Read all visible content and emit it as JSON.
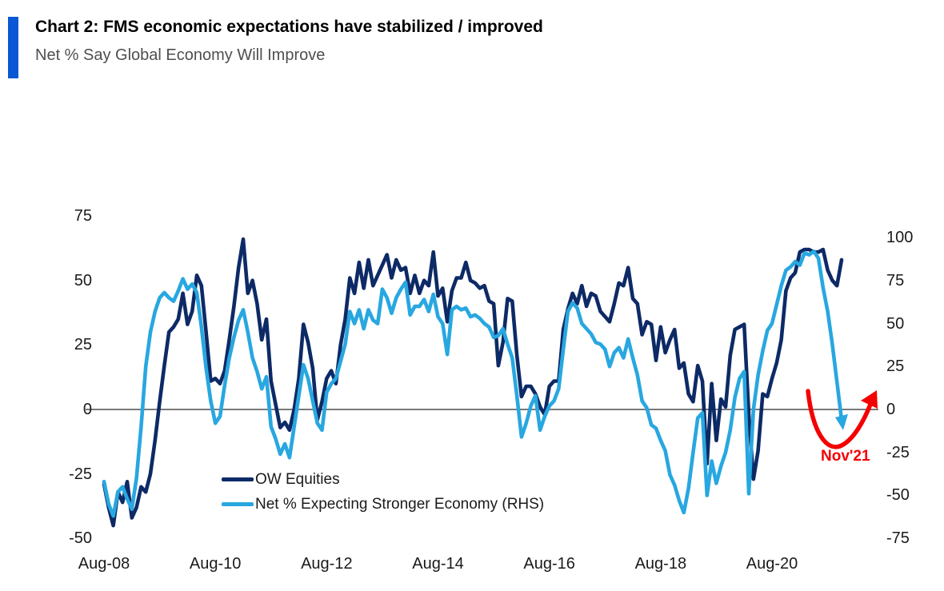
{
  "header": {
    "title": "Chart 2: FMS economic expectations have stabilized / improved",
    "subtitle": "Net % Say Global Economy Will Improve",
    "accent_color": "#0b58d6"
  },
  "chart_data": {
    "type": "line",
    "title": "Net % Say Global Economy Will Improve",
    "x_months": {
      "start": "Aug-08",
      "end": "Nov-21",
      "step": "1 month",
      "count": 160
    },
    "x_ticks": {
      "labels": [
        "Aug-08",
        "Aug-10",
        "Aug-12",
        "Aug-14",
        "Aug-16",
        "Aug-18",
        "Aug-20"
      ],
      "month_indices": [
        0,
        24,
        48,
        72,
        96,
        120,
        144
      ]
    },
    "left_axis": {
      "ticks": [
        75,
        50,
        25,
        0,
        -25,
        -50
      ],
      "min": -50,
      "max": 75
    },
    "right_axis": {
      "ticks": [
        100,
        75,
        50,
        25,
        0,
        -25,
        -50,
        -75
      ],
      "min": -75,
      "max": 100
    },
    "zero_line": true,
    "grid": false,
    "legend_position": "inside-lower-left",
    "series": [
      {
        "name": "OW Equities",
        "axis": "left",
        "color": "#0d2a66",
        "values": [
          -29,
          -38,
          -45,
          -32,
          -36,
          -28,
          -42,
          -38,
          -30,
          -32,
          -25,
          -12,
          3,
          17,
          30,
          32,
          35,
          45,
          33,
          38,
          52,
          48,
          30,
          11,
          12,
          10,
          15,
          27,
          40,
          55,
          66,
          45,
          50,
          41,
          27,
          35,
          11,
          2,
          -7,
          -5,
          -8,
          0,
          12,
          33,
          26,
          16,
          -4,
          3,
          12,
          15,
          10,
          25,
          35,
          51,
          45,
          57,
          47,
          58,
          48,
          52,
          56,
          60,
          51,
          58,
          54,
          55,
          45,
          52,
          45,
          50,
          48,
          61,
          44,
          47,
          34,
          46,
          51,
          51,
          57,
          50,
          49,
          47,
          48,
          42,
          41,
          17,
          26,
          43,
          42,
          21,
          5,
          9,
          9,
          6,
          1,
          -2,
          9,
          11,
          11,
          31,
          39,
          45,
          41,
          48,
          40,
          45,
          44,
          38,
          36,
          34,
          41,
          49,
          48,
          55,
          43,
          41,
          29,
          34,
          33,
          19,
          32,
          22,
          27,
          31,
          16,
          18,
          6,
          3,
          17,
          11,
          -21,
          10,
          -12,
          4,
          1,
          21,
          31,
          32,
          33,
          -2,
          -27,
          -16,
          6,
          5,
          12,
          18,
          27,
          46,
          51,
          53,
          61,
          62,
          62,
          61,
          61,
          62,
          54,
          50,
          48,
          58
        ]
      },
      {
        "name": "Net % Expecting Stronger Economy (RHS)",
        "axis": "right",
        "color": "#28a7e0",
        "arrow_end": true,
        "values": [
          -42,
          -55,
          -62,
          -48,
          -45,
          -52,
          -58,
          -40,
          -10,
          25,
          45,
          57,
          65,
          68,
          65,
          63,
          69,
          76,
          70,
          73,
          68,
          48,
          24,
          5,
          -8,
          -4,
          14,
          30,
          42,
          52,
          58,
          45,
          30,
          22,
          12,
          19,
          -10,
          -17,
          -26,
          -20,
          -28,
          -10,
          8,
          26,
          18,
          5,
          -8,
          -12,
          10,
          15,
          18,
          28,
          38,
          57,
          50,
          58,
          47,
          58,
          52,
          50,
          70,
          65,
          56,
          65,
          70,
          74,
          55,
          60,
          60,
          64,
          57,
          67,
          54,
          50,
          32,
          58,
          60,
          58,
          59,
          54,
          55,
          53,
          50,
          48,
          42,
          43,
          47,
          38,
          30,
          8,
          -16,
          -8,
          2,
          8,
          -12,
          -4,
          2,
          5,
          12,
          35,
          57,
          62,
          59,
          50,
          47,
          44,
          39,
          38,
          35,
          25,
          33,
          36,
          30,
          41,
          30,
          20,
          5,
          1,
          -9,
          -11,
          -18,
          -24,
          -38,
          -44,
          -53,
          -60,
          -46,
          -25,
          -5,
          -2,
          -50,
          -30,
          -43,
          -33,
          -25,
          -12,
          7,
          18,
          22,
          -49,
          0,
          20,
          34,
          46,
          50,
          61,
          72,
          81,
          83,
          86,
          84,
          91,
          90,
          92,
          88,
          71,
          57,
          38,
          16,
          -6
        ]
      }
    ],
    "annotations": [
      {
        "text": "Nov'21",
        "color": "#f40000",
        "type": "swoosh-arrow",
        "points_to": "final dip of blue series near 0 on right axis"
      }
    ]
  },
  "legend": {
    "items": [
      {
        "label": "OW Equities",
        "color": "#0d2a66"
      },
      {
        "label": "Net % Expecting Stronger Economy (RHS)",
        "color": "#28a7e0"
      }
    ]
  }
}
